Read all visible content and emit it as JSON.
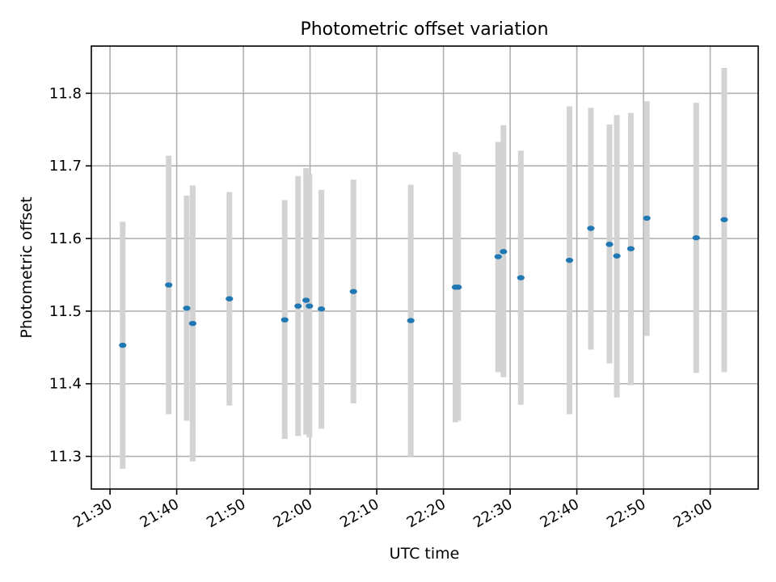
{
  "chart_data": {
    "type": "scatter",
    "title": "Photometric offset variation",
    "xlabel": "UTC time",
    "ylabel": "Photometric offset",
    "x_ticks": [
      "21:30",
      "21:40",
      "21:50",
      "22:00",
      "22:10",
      "22:20",
      "22:30",
      "22:40",
      "22:50",
      "23:00"
    ],
    "y_ticks": [
      "11.3",
      "11.4",
      "11.5",
      "11.6",
      "11.7",
      "11.8"
    ],
    "xlim": [
      "21:27.2",
      "23:07.2"
    ],
    "ylim": [
      11.255,
      11.865
    ],
    "grid": true,
    "marker_color": "#1f77b4",
    "errorbar_color": "#d3d3d3",
    "points": [
      {
        "x": "21:31.9",
        "y": 11.453,
        "ylow": 11.283,
        "yhigh": 11.623
      },
      {
        "x": "21:38.8",
        "y": 11.536,
        "ylow": 11.358,
        "yhigh": 11.714
      },
      {
        "x": "21:41.5",
        "y": 11.504,
        "ylow": 11.349,
        "yhigh": 11.659
      },
      {
        "x": "21:42.4",
        "y": 11.483,
        "ylow": 11.293,
        "yhigh": 11.673
      },
      {
        "x": "21:47.9",
        "y": 11.517,
        "ylow": 11.37,
        "yhigh": 11.664
      },
      {
        "x": "21:56.2",
        "y": 11.488,
        "ylow": 11.324,
        "yhigh": 11.653
      },
      {
        "x": "21:58.2",
        "y": 11.507,
        "ylow": 11.328,
        "yhigh": 11.686
      },
      {
        "x": "21:59.4",
        "y": 11.515,
        "ylow": 11.33,
        "yhigh": 11.697
      },
      {
        "x": "21:59.9",
        "y": 11.507,
        "ylow": 11.326,
        "yhigh": 11.689
      },
      {
        "x": "22:01.7",
        "y": 11.503,
        "ylow": 11.338,
        "yhigh": 11.667
      },
      {
        "x": "22:06.5",
        "y": 11.527,
        "ylow": 11.373,
        "yhigh": 11.681
      },
      {
        "x": "22:15.1",
        "y": 11.487,
        "ylow": 11.3,
        "yhigh": 11.674
      },
      {
        "x": "22:21.8",
        "y": 11.533,
        "ylow": 11.347,
        "yhigh": 11.719
      },
      {
        "x": "22:22.2",
        "y": 11.533,
        "ylow": 11.349,
        "yhigh": 11.716
      },
      {
        "x": "22:28.2",
        "y": 11.575,
        "ylow": 11.416,
        "yhigh": 11.733
      },
      {
        "x": "22:29.0",
        "y": 11.582,
        "ylow": 11.409,
        "yhigh": 11.756
      },
      {
        "x": "22:31.6",
        "y": 11.546,
        "ylow": 11.371,
        "yhigh": 11.721
      },
      {
        "x": "22:38.9",
        "y": 11.57,
        "ylow": 11.358,
        "yhigh": 11.782
      },
      {
        "x": "22:42.1",
        "y": 11.614,
        "ylow": 11.447,
        "yhigh": 11.78
      },
      {
        "x": "22:44.9",
        "y": 11.592,
        "ylow": 11.428,
        "yhigh": 11.757
      },
      {
        "x": "22:46.0",
        "y": 11.576,
        "ylow": 11.381,
        "yhigh": 11.77
      },
      {
        "x": "22:48.1",
        "y": 11.586,
        "ylow": 11.398,
        "yhigh": 11.773
      },
      {
        "x": "22:50.5",
        "y": 11.628,
        "ylow": 11.466,
        "yhigh": 11.789
      },
      {
        "x": "22:57.9",
        "y": 11.601,
        "ylow": 11.415,
        "yhigh": 11.787
      },
      {
        "x": "23:02.1",
        "y": 11.626,
        "ylow": 11.416,
        "yhigh": 11.835
      }
    ]
  }
}
